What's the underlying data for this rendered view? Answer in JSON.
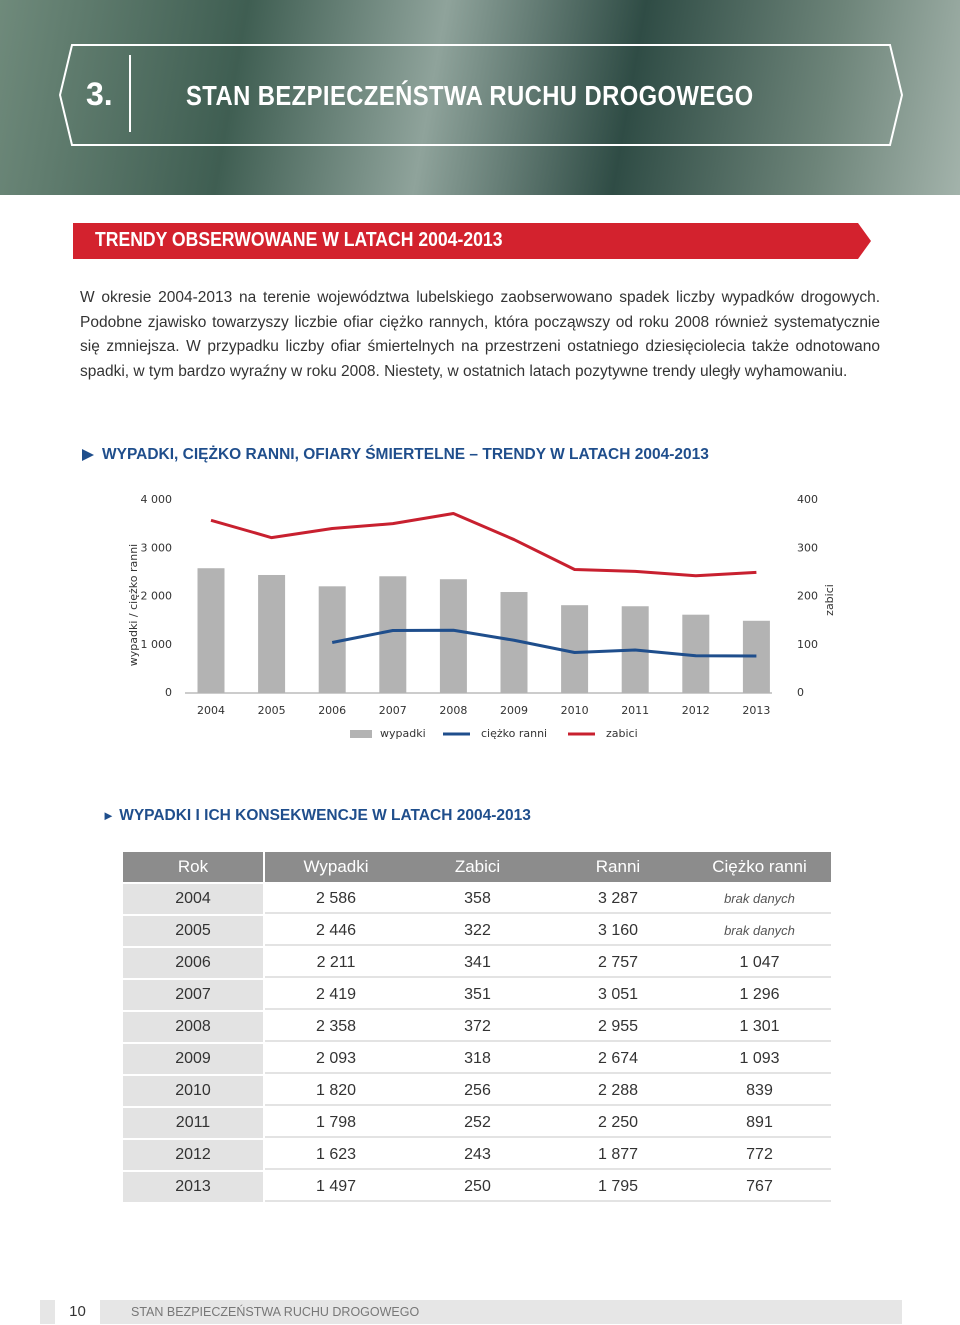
{
  "header": {
    "number": "3.",
    "title": "STAN BEZPIECZEŃSTWA RUCHU DROGOWEGO"
  },
  "section": {
    "title": "TRENDY OBSERWOWANE W LATACH 2004-2013"
  },
  "paragraph": "W okresie 2004-2013 na terenie województwa lubelskiego zaobserwowano spadek liczby wypadków drogowych. Podobne zjawisko towarzyszy liczbie ofiar ciężko rannych, która począwszy od roku 2008 również systematycznie się zmniejsza. W przypadku liczby ofiar śmiertelnych na przestrzeni ostatniego dziesięciolecia także odnotowano spadki, w tym bardzo wyraźny w roku 2008. Niestety, w ostatnich latach pozytywne trendy uległy wyhamowaniu.",
  "chart_data": {
    "type": "bar-line",
    "title": "WYPADKI, CIĘŻKO RANNI, OFIARY ŚMIERTELNE – TRENDY W LATACH 2004-2013",
    "ylabel": "wypadki / ciężko ranni",
    "y2label": "zabici",
    "categories": [
      "2004",
      "2005",
      "2006",
      "2007",
      "2008",
      "2009",
      "2010",
      "2011",
      "2012",
      "2013"
    ],
    "series": [
      {
        "name": "wypadki",
        "type": "bar",
        "color": "#b3b3b3",
        "values": [
          2586,
          2446,
          2211,
          2419,
          2358,
          2093,
          1820,
          1798,
          1623,
          1497
        ]
      },
      {
        "name": "ciężko ranni",
        "type": "line",
        "color": "#1f4e8c",
        "values": [
          null,
          null,
          1047,
          1296,
          1301,
          1093,
          839,
          891,
          772,
          767
        ]
      },
      {
        "name": "zabici",
        "type": "line",
        "axis": "y2",
        "color": "#c8202f",
        "values": [
          358,
          322,
          341,
          351,
          372,
          318,
          256,
          252,
          243,
          250
        ]
      }
    ],
    "ylim": [
      0,
      4000
    ],
    "yticks": [
      0,
      {
        "value": 1000,
        "label": "1 000"
      },
      {
        "value": 2000,
        "label": "2 000"
      },
      {
        "value": 3000,
        "label": "3 000"
      },
      {
        "value": 4000,
        "label": "4 000"
      }
    ],
    "y2lim": [
      0,
      400
    ],
    "y2ticks": [
      0,
      100,
      200,
      300,
      400
    ]
  },
  "table": {
    "title": "WYPADKI I ICH KONSEKWENCJE W LATACH 2004-2013",
    "header": [
      "Rok",
      "Wypadki",
      "Zabici",
      "Ranni",
      "Ciężko ranni"
    ],
    "rows": [
      [
        "2004",
        "2 586",
        "358",
        "3 287",
        "brak danych"
      ],
      [
        "2005",
        "2 446",
        "322",
        "3 160",
        "brak danych"
      ],
      [
        "2006",
        "2 211",
        "341",
        "2 757",
        "1 047"
      ],
      [
        "2007",
        "2 419",
        "351",
        "3 051",
        "1 296"
      ],
      [
        "2008",
        "2 358",
        "372",
        "2 955",
        "1 301"
      ],
      [
        "2009",
        "2 093",
        "318",
        "2 674",
        "1 093"
      ],
      [
        "2010",
        "1 820",
        "256",
        "2 288",
        "839"
      ],
      [
        "2011",
        "1 798",
        "252",
        "2 250",
        "891"
      ],
      [
        "2012",
        "1 623",
        "243",
        "1 877",
        "772"
      ],
      [
        "2013",
        "1 497",
        "250",
        "1 795",
        "767"
      ]
    ]
  },
  "footer": {
    "page": "10",
    "title": "STAN BEZPIECZEŃSTWA RUCHU DROGOWEGO"
  }
}
